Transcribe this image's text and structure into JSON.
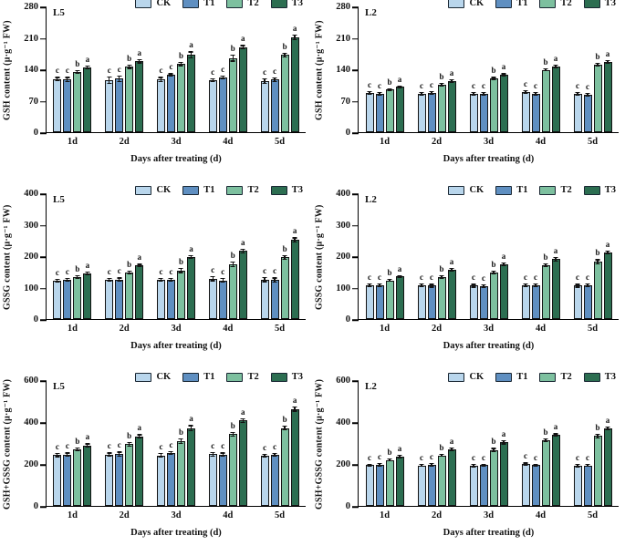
{
  "colors": {
    "CK": "#b9d6ec",
    "T1": "#5f8fc1",
    "T2": "#7dc09f",
    "T3": "#2c6e51",
    "axis": "#131313",
    "swatch_border": "#1a2733"
  },
  "chart_data": [
    {
      "type": "bar",
      "panel_label": "L5",
      "ylabel": "GSH content (μ·g⁻¹ FW)",
      "xlabel": "Days after treating (d)",
      "ylim": [
        0,
        280
      ],
      "yticks": [
        0,
        70,
        140,
        210,
        280
      ],
      "categories": [
        "1d",
        "2d",
        "3d",
        "4d",
        "5d"
      ],
      "legend_position": "top-right",
      "grid": false,
      "series": [
        {
          "name": "CK",
          "values": [
            118,
            116,
            117,
            116,
            114
          ],
          "errors": [
            5,
            8,
            6,
            4,
            6
          ],
          "letters": [
            "c",
            "c",
            "c",
            "c",
            "c"
          ]
        },
        {
          "name": "T1",
          "values": [
            117,
            119,
            127,
            122,
            117
          ],
          "errors": [
            6,
            7,
            4,
            4,
            5
          ],
          "letters": [
            "c",
            "c",
            "c",
            "c",
            "c"
          ]
        },
        {
          "name": "T2",
          "values": [
            134,
            146,
            152,
            165,
            172
          ],
          "errors": [
            5,
            5,
            5,
            8,
            5
          ],
          "letters": [
            "b",
            "b",
            "b",
            "b",
            "b"
          ]
        },
        {
          "name": "T3",
          "values": [
            145,
            158,
            172,
            189,
            211
          ],
          "errors": [
            4,
            5,
            8,
            5,
            6
          ],
          "letters": [
            "a",
            "a",
            "a",
            "a",
            "a"
          ]
        }
      ]
    },
    {
      "type": "bar",
      "panel_label": "L2",
      "ylabel": "GSH content (μ·g⁻¹ FW)",
      "xlabel": "Days after treating (d)",
      "ylim": [
        0,
        280
      ],
      "yticks": [
        0,
        70,
        140,
        210,
        280
      ],
      "categories": [
        "1d",
        "2d",
        "3d",
        "4d",
        "5d"
      ],
      "legend_position": "top-right",
      "grid": false,
      "series": [
        {
          "name": "CK",
          "values": [
            87,
            85,
            86,
            90,
            86
          ],
          "errors": [
            4,
            4,
            4,
            4,
            4
          ],
          "letters": [
            "c",
            "c",
            "c",
            "c",
            "c"
          ]
        },
        {
          "name": "T1",
          "values": [
            86,
            87,
            86,
            86,
            84
          ],
          "errors": [
            4,
            4,
            4,
            4,
            4
          ],
          "letters": [
            "c",
            "c",
            "c",
            "c",
            "c"
          ]
        },
        {
          "name": "T2",
          "values": [
            95,
            106,
            119,
            139,
            150
          ],
          "errors": [
            3,
            4,
            4,
            4,
            4
          ],
          "letters": [
            "b",
            "b",
            "b",
            "b",
            "b"
          ]
        },
        {
          "name": "T3",
          "values": [
            101,
            114,
            127,
            146,
            157
          ],
          "errors": [
            3,
            4,
            4,
            4,
            4
          ],
          "letters": [
            "a",
            "a",
            "a",
            "a",
            "a"
          ]
        }
      ]
    },
    {
      "type": "bar",
      "panel_label": "L5",
      "ylabel": "GSSG content (μ·g⁻¹ FW)",
      "xlabel": "Days after treating (d)",
      "ylim": [
        0,
        400
      ],
      "yticks": [
        0,
        100,
        200,
        300,
        400
      ],
      "categories": [
        "1d",
        "2d",
        "3d",
        "4d",
        "5d"
      ],
      "legend_position": "top-right",
      "grid": false,
      "series": [
        {
          "name": "CK",
          "values": [
            123,
            125,
            124,
            128,
            125
          ],
          "errors": [
            6,
            6,
            6,
            8,
            8
          ],
          "letters": [
            "c",
            "c",
            "c",
            "c",
            "c"
          ]
        },
        {
          "name": "T1",
          "values": [
            125,
            126,
            124,
            123,
            124
          ],
          "errors": [
            6,
            6,
            6,
            8,
            8
          ],
          "letters": [
            "c",
            "c",
            "c",
            "c",
            "c"
          ]
        },
        {
          "name": "T2",
          "values": [
            134,
            148,
            154,
            174,
            196
          ],
          "errors": [
            6,
            6,
            8,
            8,
            8
          ],
          "letters": [
            "b",
            "b",
            "b",
            "b",
            "b"
          ]
        },
        {
          "name": "T3",
          "values": [
            145,
            170,
            197,
            216,
            252
          ],
          "errors": [
            6,
            6,
            6,
            8,
            8
          ],
          "letters": [
            "a",
            "a",
            "a",
            "a",
            "a"
          ]
        }
      ]
    },
    {
      "type": "bar",
      "panel_label": "L2",
      "ylabel": "GSSG content (μ·g⁻¹ FW)",
      "xlabel": "Days after treating (d)",
      "ylim": [
        0,
        400
      ],
      "yticks": [
        0,
        100,
        200,
        300,
        400
      ],
      "categories": [
        "1d",
        "2d",
        "3d",
        "4d",
        "5d"
      ],
      "legend_position": "top-right",
      "grid": false,
      "series": [
        {
          "name": "CK",
          "values": [
            107,
            107,
            106,
            107,
            106
          ],
          "errors": [
            6,
            6,
            6,
            6,
            6
          ],
          "letters": [
            "c",
            "c",
            "c",
            "c",
            "c"
          ]
        },
        {
          "name": "T1",
          "values": [
            107,
            106,
            105,
            107,
            108
          ],
          "errors": [
            6,
            6,
            6,
            6,
            6
          ],
          "letters": [
            "c",
            "c",
            "c",
            "c",
            "c"
          ]
        },
        {
          "name": "T2",
          "values": [
            123,
            134,
            148,
            172,
            182
          ],
          "errors": [
            5,
            6,
            6,
            6,
            8
          ],
          "letters": [
            "b",
            "b",
            "b",
            "b",
            "b"
          ]
        },
        {
          "name": "T3",
          "values": [
            135,
            156,
            173,
            190,
            212
          ],
          "errors": [
            5,
            6,
            6,
            8,
            6
          ],
          "letters": [
            "a",
            "a",
            "a",
            "a",
            "a"
          ]
        }
      ]
    },
    {
      "type": "bar",
      "panel_label": "L5",
      "ylabel": "GSH+GSSG content (μ·g⁻¹ FW)",
      "xlabel": "Days after treating (d)",
      "ylim": [
        0,
        600
      ],
      "yticks": [
        0,
        200,
        400,
        600
      ],
      "categories": [
        "1d",
        "2d",
        "3d",
        "4d",
        "5d"
      ],
      "legend_position": "top-right",
      "grid": false,
      "series": [
        {
          "name": "CK",
          "values": [
            242,
            245,
            241,
            246,
            240
          ],
          "errors": [
            10,
            10,
            12,
            10,
            10
          ],
          "letters": [
            "c",
            "c",
            "c",
            "c",
            "c"
          ]
        },
        {
          "name": "T1",
          "values": [
            245,
            247,
            252,
            245,
            243
          ],
          "errors": [
            10,
            12,
            10,
            10,
            10
          ],
          "letters": [
            "c",
            "c",
            "c",
            "c",
            "c"
          ]
        },
        {
          "name": "T2",
          "values": [
            270,
            294,
            309,
            342,
            371
          ],
          "errors": [
            10,
            10,
            12,
            12,
            12
          ],
          "letters": [
            "b",
            "b",
            "b",
            "b",
            "b"
          ]
        },
        {
          "name": "T3",
          "values": [
            288,
            332,
            371,
            407,
            462
          ],
          "errors": [
            10,
            10,
            14,
            12,
            12
          ],
          "letters": [
            "a",
            "a",
            "a",
            "a",
            "a"
          ]
        }
      ]
    },
    {
      "type": "bar",
      "panel_label": "L2",
      "ylabel": "GSH+GSSG content (μ·g⁻¹ FW)",
      "xlabel": "Days after treating (d)",
      "ylim": [
        0,
        600
      ],
      "yticks": [
        0,
        200,
        400,
        600
      ],
      "categories": [
        "1d",
        "2d",
        "3d",
        "4d",
        "5d"
      ],
      "legend_position": "top-right",
      "grid": false,
      "series": [
        {
          "name": "CK",
          "values": [
            194,
            193,
            192,
            199,
            192
          ],
          "errors": [
            8,
            8,
            8,
            8,
            8
          ],
          "letters": [
            "c",
            "c",
            "c",
            "c",
            "c"
          ]
        },
        {
          "name": "T1",
          "values": [
            196,
            196,
            194,
            194,
            193
          ],
          "errors": [
            8,
            8,
            8,
            8,
            8
          ],
          "letters": [
            "c",
            "c",
            "c",
            "c",
            "c"
          ]
        },
        {
          "name": "T2",
          "values": [
            219,
            241,
            267,
            314,
            333
          ],
          "errors": [
            8,
            8,
            10,
            8,
            10
          ],
          "letters": [
            "b",
            "b",
            "b",
            "b",
            "b"
          ]
        },
        {
          "name": "T3",
          "values": [
            236,
            271,
            303,
            338,
            370
          ],
          "errors": [
            8,
            8,
            10,
            8,
            8
          ],
          "letters": [
            "a",
            "a",
            "a",
            "a",
            "a"
          ]
        }
      ]
    }
  ]
}
